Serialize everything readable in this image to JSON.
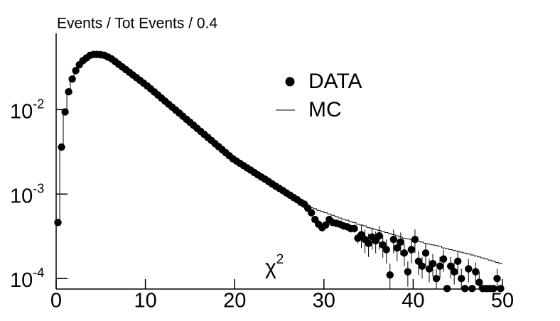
{
  "chart_data": {
    "type": "scatter",
    "title": "Events / Tot Events / 0.4",
    "annotation": {
      "text": "χ",
      "sup": "2"
    },
    "log_y": true,
    "legend": "top-center",
    "xlim": [
      0,
      50
    ],
    "ylim": [
      7.5e-05,
      0.08
    ],
    "xticks": [
      0,
      10,
      20,
      30,
      40,
      50
    ],
    "yticks": [
      {
        "value": 0.01,
        "label": "10",
        "exponent": "-2"
      },
      {
        "value": 0.001,
        "label": "10",
        "exponent": "-3"
      },
      {
        "value": 0.0001,
        "label": "10",
        "exponent": "-4"
      }
    ],
    "x": [
      0.2,
      0.6,
      1,
      1.4,
      1.8,
      2.2,
      2.6,
      3,
      3.4,
      3.8,
      4.2,
      4.6,
      5,
      5.4,
      5.8,
      6.2,
      6.6,
      7,
      7.4,
      7.8,
      8.2,
      8.6,
      9,
      9.4,
      9.8,
      10.2,
      10.6,
      11,
      11.4,
      11.8,
      12.2,
      12.6,
      13,
      13.4,
      13.8,
      14.2,
      14.6,
      15,
      15.4,
      15.8,
      16.2,
      16.6,
      17,
      17.4,
      17.8,
      18.2,
      18.6,
      19,
      19.4,
      19.8,
      20.2,
      20.6,
      21,
      21.4,
      21.8,
      22.2,
      22.6,
      23,
      23.4,
      23.8,
      24.2,
      24.6,
      25,
      25.4,
      25.8,
      26.2,
      26.6,
      27,
      27.4,
      27.8,
      28.2,
      28.6,
      29,
      29.4,
      29.8,
      30.2,
      30.6,
      31,
      31.4,
      31.8,
      32.2,
      32.6,
      33,
      33.4,
      33.8,
      34.2,
      34.6,
      35,
      35.4,
      35.8,
      36.2,
      36.6,
      37,
      37.4,
      37.8,
      38.2,
      38.6,
      39,
      39.4,
      39.8,
      40.2,
      40.6,
      41,
      41.4,
      41.8,
      42.2,
      42.6,
      43,
      43.4,
      43.8,
      44.2,
      44.6,
      45,
      45.4,
      45.8,
      46.2,
      46.6,
      47,
      47.4,
      47.8,
      48.2,
      48.6,
      49,
      49.4,
      49.8
    ],
    "series": [
      {
        "name": "DATA",
        "color": "#000000",
        "marker": "circle",
        "values": [
          0.00046,
          0.0036,
          0.0094,
          0.0163,
          0.023,
          0.029,
          0.034,
          0.038,
          0.041,
          0.044,
          0.045,
          0.045,
          0.0447,
          0.044,
          0.042,
          0.04,
          0.0372,
          0.0345,
          0.0321,
          0.0298,
          0.0277,
          0.0257,
          0.0239,
          0.0222,
          0.0206,
          0.0191,
          0.0176,
          0.0162,
          0.0149,
          0.0137,
          0.0126,
          0.0116,
          0.0107,
          0.00986,
          0.00908,
          0.00836,
          0.00769,
          0.00708,
          0.00652,
          0.006,
          0.00552,
          0.00508,
          0.00468,
          0.00431,
          0.00396,
          0.00365,
          0.00336,
          0.00309,
          0.00284,
          0.00262,
          0.00246,
          0.00231,
          0.00217,
          0.00204,
          0.00192,
          0.0018,
          0.00169,
          0.00159,
          0.0015,
          0.00141,
          0.00132,
          0.00124,
          0.00117,
          0.0011,
          0.00103,
          0.00097,
          0.00091,
          0.00086,
          0.0008,
          0.00076,
          0.00068,
          0.0006,
          0.0005,
          0.00044,
          0.0004,
          0.00043,
          0.0005,
          0.00046,
          0.00045,
          0.00044,
          0.00042,
          0.00041,
          0.00039,
          0.00039,
          0.0003,
          0.00033,
          0.00029,
          0.00026,
          0.00031,
          0.00028,
          0.00032,
          0.00025,
          0.00022,
          0.00011,
          0.00029,
          0.00023,
          0.00027,
          0.0002,
          0.00012,
          0.00022,
          0.00029,
          0.00016,
          0.00014,
          0.0002,
          0.00013,
          0.00015,
          0.0001,
          0.00014,
          0.00017,
          7.6e-05,
          0.00014,
          0.00012,
          0.00016,
          0.0001,
          7.6e-05,
          0.00013,
          7.6e-05,
          0.00012,
          9e-05,
          7.6e-05,
          7.6e-05,
          7.6e-05,
          7.6e-05,
          0.0001,
          7.6e-05
        ],
        "errors": [
          0,
          0,
          0,
          0,
          0,
          0,
          0,
          0,
          0,
          0,
          0,
          0,
          0,
          0,
          0,
          0,
          0,
          0,
          0,
          0,
          0,
          0,
          0,
          0,
          0,
          0,
          0,
          0,
          0,
          0,
          0,
          0,
          0,
          0,
          0,
          0,
          0,
          0,
          0,
          0,
          0,
          0,
          0,
          0,
          0,
          0,
          0,
          0,
          0,
          0,
          0,
          0,
          0,
          0,
          0,
          0,
          0,
          0,
          0,
          0,
          0,
          0,
          0,
          0,
          0,
          0,
          0,
          0,
          0,
          0,
          0,
          0,
          0,
          0,
          0,
          4e-05,
          4e-05,
          4e-05,
          4e-05,
          4e-05,
          4e-05,
          4e-05,
          4e-05,
          4e-05,
          4e-05,
          0.0001,
          9e-05,
          8e-05,
          9e-05,
          8e-05,
          0.0001,
          7.5e-05,
          7e-05,
          4e-05,
          9e-05,
          7e-05,
          8e-05,
          6e-05,
          4e-05,
          7e-05,
          9e-05,
          5e-05,
          4e-05,
          6e-05,
          4e-05,
          4.5e-05,
          3e-05,
          4e-05,
          5e-05,
          0,
          4e-05,
          3.5e-05,
          5e-05,
          3e-05,
          0,
          4e-05,
          0,
          3.5e-05,
          3e-05,
          0,
          0,
          0,
          0,
          3e-05,
          0
        ]
      },
      {
        "name": "MC",
        "color": "#000000",
        "marker": "step",
        "values": [
          0.00046,
          0.0036,
          0.0094,
          0.0163,
          0.023,
          0.029,
          0.034,
          0.038,
          0.041,
          0.044,
          0.045,
          0.045,
          0.0447,
          0.044,
          0.042,
          0.04,
          0.0372,
          0.0345,
          0.0321,
          0.0298,
          0.0277,
          0.0257,
          0.0239,
          0.0222,
          0.0206,
          0.0191,
          0.0176,
          0.0162,
          0.0149,
          0.0137,
          0.0126,
          0.0116,
          0.0107,
          0.00986,
          0.00908,
          0.00836,
          0.00769,
          0.00708,
          0.00652,
          0.006,
          0.00552,
          0.00508,
          0.00468,
          0.00431,
          0.00396,
          0.00365,
          0.00336,
          0.00309,
          0.00284,
          0.00262,
          0.00246,
          0.00231,
          0.00217,
          0.00204,
          0.00192,
          0.0018,
          0.00169,
          0.00159,
          0.0015,
          0.00141,
          0.00132,
          0.00124,
          0.00117,
          0.0011,
          0.00103,
          0.00097,
          0.00091,
          0.00086,
          0.0008,
          0.00076,
          0.00072,
          0.00069,
          0.00067,
          0.00064,
          0.00062,
          0.0006,
          0.00058,
          0.00056,
          0.00054,
          0.00052,
          0.0005,
          0.00049,
          0.00047,
          0.00046,
          0.00044,
          0.00043,
          0.00042,
          0.0004,
          0.00039,
          0.00038,
          0.00037,
          0.00036,
          0.00035,
          0.00034,
          0.00033,
          0.00032,
          0.00031,
          0.0003,
          0.000295,
          0.00029,
          0.00028,
          0.000275,
          0.00027,
          0.00026,
          0.000255,
          0.00025,
          0.000245,
          0.00024,
          0.00023,
          0.000225,
          0.00022,
          0.000215,
          0.00021,
          0.000205,
          0.0002,
          0.000195,
          0.00019,
          0.000185,
          0.00018,
          0.000175,
          0.00017,
          0.000165,
          0.00016,
          0.000155,
          0.00015
        ]
      }
    ]
  }
}
